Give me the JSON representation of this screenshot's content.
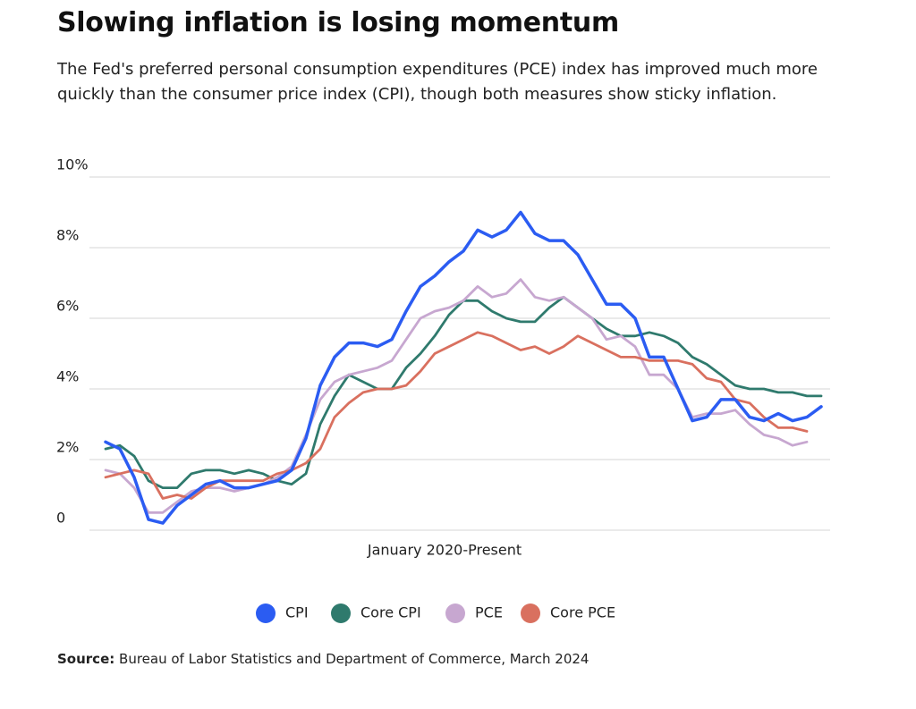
{
  "chart_data": {
    "type": "line",
    "title": "Slowing inflation is losing momentum",
    "subtitle": "The Fed's preferred personal consumption expenditures (PCE) index has improved much more quickly than the consumer price index (CPI), though both measures show sticky inflation.",
    "x_label": "January 2020-Present",
    "source_label": "Source:",
    "source": "Bureau of Labor Statistics and Department of Commerce, March 2024",
    "ylim": [
      0,
      10
    ],
    "yticks": [
      0,
      {
        "value": 2,
        "label": "2%"
      },
      {
        "value": 4,
        "label": "4%"
      },
      {
        "value": 6,
        "label": "6%"
      },
      {
        "value": 8,
        "label": "8%"
      },
      {
        "value": 10,
        "label": "10%"
      }
    ],
    "grid": true,
    "legend": "bottom",
    "series": [
      {
        "name": "CPI",
        "color": "#2b5cf2",
        "values": [
          2.5,
          2.3,
          1.5,
          0.3,
          0.2,
          0.7,
          1.0,
          1.3,
          1.4,
          1.2,
          1.2,
          1.3,
          1.4,
          1.7,
          2.6,
          4.1,
          4.9,
          5.3,
          5.3,
          5.2,
          5.4,
          6.2,
          6.9,
          7.2,
          7.6,
          7.9,
          8.5,
          8.3,
          8.5,
          9.0,
          8.4,
          8.2,
          8.2,
          7.8,
          7.1,
          6.4,
          6.4,
          6.0,
          4.9,
          4.9,
          4.0,
          3.1,
          3.2,
          3.7,
          3.7,
          3.2,
          3.1,
          3.3,
          3.1,
          3.2,
          3.5
        ]
      },
      {
        "name": "Core CPI",
        "color": "#2f7a6d",
        "values": [
          2.3,
          2.4,
          2.1,
          1.4,
          1.2,
          1.2,
          1.6,
          1.7,
          1.7,
          1.6,
          1.7,
          1.6,
          1.4,
          1.3,
          1.6,
          3.0,
          3.8,
          4.4,
          4.2,
          4.0,
          4.0,
          4.6,
          5.0,
          5.5,
          6.1,
          6.5,
          6.5,
          6.2,
          6.0,
          5.9,
          5.9,
          6.3,
          6.6,
          6.3,
          6.0,
          5.7,
          5.5,
          5.5,
          5.6,
          5.5,
          5.3,
          4.9,
          4.7,
          4.4,
          4.1,
          4.0,
          4.0,
          3.9,
          3.9,
          3.8,
          3.8
        ]
      },
      {
        "name": "PCE",
        "color": "#c7a7d0",
        "values": [
          1.7,
          1.6,
          1.2,
          0.5,
          0.5,
          0.8,
          1.1,
          1.2,
          1.2,
          1.1,
          1.2,
          1.3,
          1.5,
          1.8,
          2.7,
          3.7,
          4.2,
          4.4,
          4.5,
          4.6,
          4.8,
          5.4,
          6.0,
          6.2,
          6.3,
          6.5,
          6.9,
          6.6,
          6.7,
          7.1,
          6.6,
          6.5,
          6.6,
          6.3,
          6.0,
          5.4,
          5.5,
          5.2,
          4.4,
          4.4,
          4.0,
          3.2,
          3.3,
          3.3,
          3.4,
          3.0,
          2.7,
          2.6,
          2.4,
          2.5,
          null
        ]
      },
      {
        "name": "Core PCE",
        "color": "#d9705f",
        "values": [
          1.5,
          1.6,
          1.7,
          1.6,
          0.9,
          1.0,
          0.9,
          1.2,
          1.4,
          1.4,
          1.4,
          1.4,
          1.6,
          1.7,
          1.9,
          2.3,
          3.2,
          3.6,
          3.9,
          4.0,
          4.0,
          4.1,
          4.5,
          5.0,
          5.2,
          5.4,
          5.6,
          5.5,
          5.3,
          5.1,
          5.2,
          5.0,
          5.2,
          5.5,
          5.3,
          5.1,
          4.9,
          4.9,
          4.8,
          4.8,
          4.8,
          4.7,
          4.3,
          4.2,
          3.7,
          3.6,
          3.2,
          2.9,
          2.9,
          2.8,
          null
        ]
      }
    ]
  }
}
